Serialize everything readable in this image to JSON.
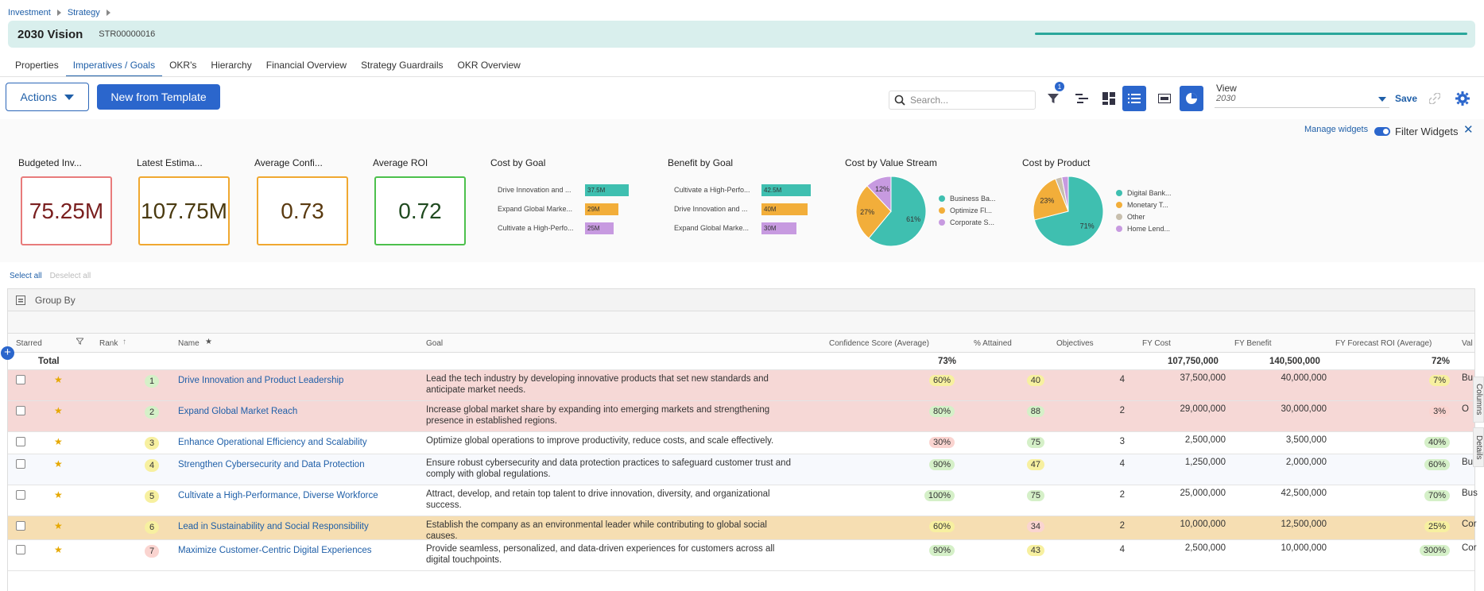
{
  "breadcrumb": [
    "Investment",
    "Strategy"
  ],
  "header": {
    "title": "2030 Vision",
    "code": "STR00000016"
  },
  "tabs": [
    "Properties",
    "Imperatives / Goals",
    "OKR's",
    "Hierarchy",
    "Financial Overview",
    "Strategy Guardrails",
    "OKR Overview"
  ],
  "toolbar": {
    "actions_label": "Actions",
    "template_label": "New from Template",
    "search_placeholder": "Search...",
    "filter_count": "1",
    "view_label": "View",
    "view_value": "2030",
    "save_label": "Save"
  },
  "widgets_bar": {
    "manage": "Manage widgets",
    "filter": "Filter Widgets"
  },
  "kpis": [
    {
      "title": "Budgeted Inv...",
      "value": "75.25M",
      "color": "#e87b7b",
      "text_color": "#7a1f1f"
    },
    {
      "title": "Latest Estima...",
      "value": "107.75M",
      "color": "#f0a830",
      "text_color": "#4a3a10"
    },
    {
      "title": "Average Confi...",
      "value": "0.73",
      "color": "#f0a830",
      "text_color": "#5a3a10"
    },
    {
      "title": "Average ROI",
      "value": "0.72",
      "color": "#4cc04c",
      "text_color": "#1f4a1f"
    }
  ],
  "cost_by_goal": {
    "title": "Cost by Goal",
    "bars": [
      {
        "label": "Drive Innovation and ...",
        "value": 37.5,
        "text": "37.5M",
        "color": "#3fbfb0"
      },
      {
        "label": "Expand Global Marke...",
        "value": 29,
        "text": "29M",
        "color": "#f2ae3a"
      },
      {
        "label": "Cultivate a High-Perfo...",
        "value": 25,
        "text": "25M",
        "color": "#c79ae0"
      }
    ]
  },
  "benefit_by_goal": {
    "title": "Benefit by Goal",
    "bars": [
      {
        "label": "Cultivate a High-Perfo...",
        "value": 42.5,
        "text": "42.5M",
        "color": "#3fbfb0"
      },
      {
        "label": "Drive Innovation and ...",
        "value": 40,
        "text": "40M",
        "color": "#f2ae3a"
      },
      {
        "label": "Expand Global Marke...",
        "value": 30,
        "text": "30M",
        "color": "#c79ae0"
      }
    ]
  },
  "cost_by_value_stream": {
    "title": "Cost by Value Stream",
    "slices": [
      {
        "name": "Business Ba...",
        "pct": 61,
        "color": "#3fbfb0"
      },
      {
        "name": "Optimize Fl...",
        "pct": 27,
        "color": "#f2ae3a"
      },
      {
        "name": "Corporate S...",
        "pct": 12,
        "color": "#c79ae0"
      }
    ]
  },
  "cost_by_product": {
    "title": "Cost by Product",
    "slices": [
      {
        "name": "Digital Bank...",
        "pct": 71,
        "color": "#3fbfb0"
      },
      {
        "name": "Monetary T...",
        "pct": 23,
        "color": "#f2ae3a"
      },
      {
        "name": "Other",
        "pct": 3,
        "color": "#c8bfae"
      },
      {
        "name": "Home Lend...",
        "pct": 3,
        "color": "#c79ae0"
      }
    ],
    "shown_labels": {
      "Digital Bank...": "71%",
      "Monetary T...": "23%"
    }
  },
  "selection": {
    "select_all": "Select all",
    "deselect_all": "Deselect all"
  },
  "group_by": "Group By",
  "columns": [
    "Starred",
    "Rank",
    "Name",
    "Goal",
    "Confidence Score (Average)",
    "% Attained",
    "Objectives",
    "FY Cost",
    "FY Benefit",
    "FY Forecast ROI (Average)",
    "Val"
  ],
  "total": {
    "label": "Total",
    "confidence": "73%",
    "fy_cost": "107,750,000",
    "fy_benefit": "140,500,000",
    "roi": "72%"
  },
  "rows": [
    {
      "rank": "1",
      "name": "Drive Innovation and Product Leadership",
      "goal": "Lead the tech industry by developing innovative products that set new standards and anticipate market needs.",
      "conf": "60%",
      "attained": "40",
      "obj": "4",
      "cost": "37,500,000",
      "benefit": "40,000,000",
      "roi": "7%",
      "val": "Bu",
      "bg": "#f6d8d6"
    },
    {
      "rank": "2",
      "name": "Expand Global Market Reach",
      "goal": "Increase global market share by expanding into emerging markets and strengthening presence in established regions.",
      "conf": "80%",
      "attained": "88",
      "obj": "2",
      "cost": "29,000,000",
      "benefit": "30,000,000",
      "roi": "3%",
      "val": "O",
      "bg": "#f6d8d6"
    },
    {
      "rank": "3",
      "name": "Enhance Operational Efficiency and Scalability",
      "goal": "Optimize global operations to improve productivity, reduce costs, and scale effectively.",
      "conf": "30%",
      "attained": "75",
      "obj": "3",
      "cost": "2,500,000",
      "benefit": "3,500,000",
      "roi": "40%",
      "val": "",
      "bg": "#ffffff"
    },
    {
      "rank": "4",
      "name": "Strengthen Cybersecurity and Data Protection",
      "goal": "Ensure robust cybersecurity and data protection practices to safeguard customer trust and comply with global regulations.",
      "conf": "90%",
      "attained": "47",
      "obj": "4",
      "cost": "1,250,000",
      "benefit": "2,000,000",
      "roi": "60%",
      "val": "Bus",
      "bg": "#f7f9fd"
    },
    {
      "rank": "5",
      "name": "Cultivate a High-Performance, Diverse Workforce",
      "goal": "Attract, develop, and retain top talent to drive innovation, diversity, and organizational success.",
      "conf": "100%",
      "attained": "75",
      "obj": "2",
      "cost": "25,000,000",
      "benefit": "42,500,000",
      "roi": "70%",
      "val": "Bus",
      "bg": "#ffffff"
    },
    {
      "rank": "6",
      "name": "Lead in Sustainability and Social Responsibility",
      "goal": "Establish the company as an environmental leader while contributing to global social causes.",
      "conf": "60%",
      "attained": "34",
      "obj": "2",
      "cost": "10,000,000",
      "benefit": "12,500,000",
      "roi": "25%",
      "val": "Cor",
      "bg": "#f6deb2"
    },
    {
      "rank": "7",
      "name": "Maximize Customer-Centric Digital Experiences",
      "goal": "Provide seamless, personalized, and data-driven experiences for customers across all digital touchpoints.",
      "conf": "90%",
      "attained": "43",
      "obj": "4",
      "cost": "2,500,000",
      "benefit": "10,000,000",
      "roi": "300%",
      "val": "Cor",
      "bg": "#ffffff"
    }
  ],
  "side_tabs": [
    "Columns",
    "Details"
  ]
}
